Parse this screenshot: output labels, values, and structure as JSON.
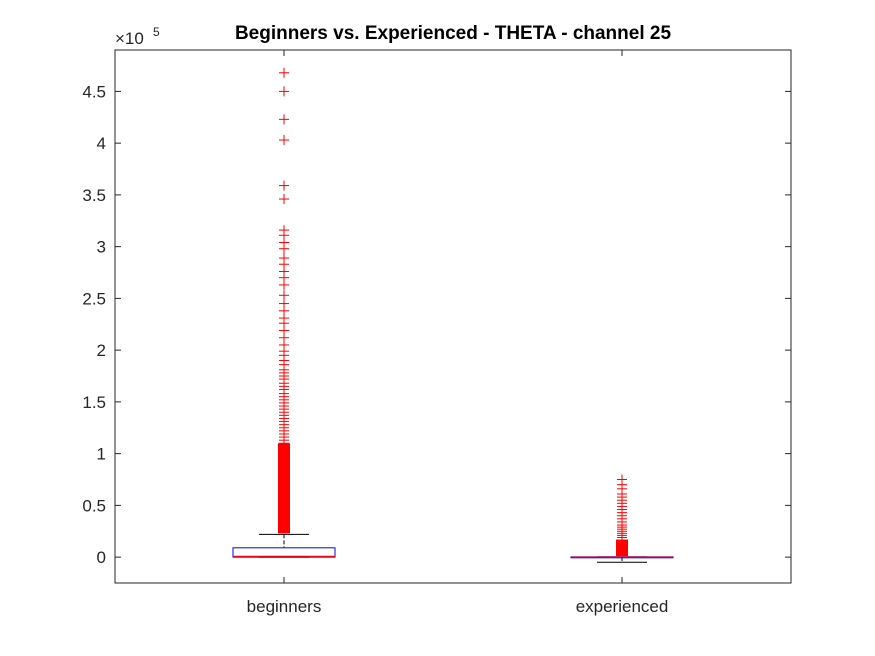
{
  "chart_data": {
    "type": "boxplot",
    "title": "Beginners vs. Experienced - THETA - channel 25",
    "xlabel": "",
    "ylabel": "",
    "y_multiplier_label": {
      "base": "×10",
      "exponent": "5"
    },
    "ylim": [
      -25000,
      490000
    ],
    "yticks": [
      0,
      50000,
      100000,
      150000,
      200000,
      250000,
      300000,
      350000,
      400000,
      450000
    ],
    "ytick_labels": [
      "0",
      "0.5",
      "1",
      "1.5",
      "2",
      "2.5",
      "3",
      "3.5",
      "4",
      "4.5"
    ],
    "categories": [
      "beginners",
      "experienced"
    ],
    "grid": false,
    "colors": {
      "box": "#0000ff",
      "median": "#ff0000",
      "whisker": "#000000",
      "outlier": "#ff0000",
      "axis": "#262626"
    },
    "boxes": [
      {
        "name": "beginners",
        "whisker_low": 0,
        "q1": 0,
        "median": 800,
        "q3": 9000,
        "whisker_high": 22000,
        "outliers": [
          468000,
          450000,
          423000,
          403000,
          359000,
          346000,
          316000,
          311000,
          304000,
          298000,
          289000,
          283000,
          276000,
          270000,
          263000,
          253000,
          245000,
          238000,
          231000,
          226000,
          219000,
          212000,
          205000,
          199000,
          195000,
          190000,
          186000,
          181000,
          178000,
          175000,
          172000,
          168000,
          165000,
          162000,
          158000,
          155000,
          152000,
          149000,
          146000,
          143000,
          140000,
          137000,
          134000,
          131000,
          128000,
          125000,
          122000,
          119000,
          116000,
          113000,
          110000
        ],
        "outlier_dense_range": [
          23000,
          110000
        ]
      },
      {
        "name": "experienced",
        "whisker_low": -5000,
        "q1": 0,
        "median": 0,
        "q3": 300,
        "whisker_high": 300,
        "outliers": [
          75000,
          70000,
          66000,
          61000,
          58000,
          55000,
          52000,
          49000,
          46000,
          43000,
          40000,
          37000,
          34000,
          31000,
          29000,
          27000,
          25000,
          23000,
          21000,
          19000
        ],
        "outlier_dense_range": [
          1000,
          17000
        ]
      }
    ]
  }
}
